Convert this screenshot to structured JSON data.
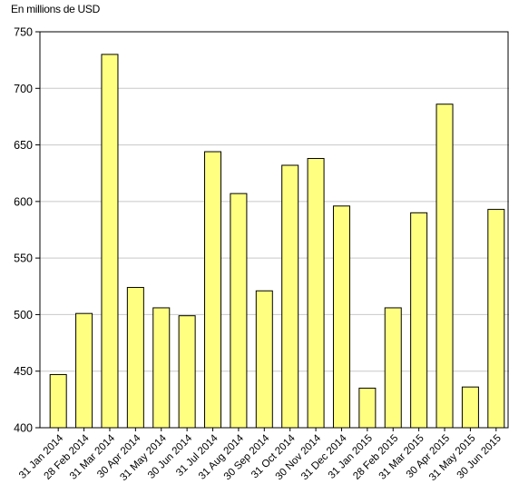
{
  "chart_data": {
    "type": "bar",
    "title": "",
    "ylabel": "En millions de USD",
    "xlabel": "",
    "ylim": [
      400,
      750
    ],
    "yticks": [
      400,
      450,
      500,
      550,
      600,
      650,
      700,
      750
    ],
    "grid": true,
    "bar_color": "#FFFF80",
    "categories": [
      "31 Jan 2014",
      "28 Feb 2014",
      "31 Mar 2014",
      "30 Apr 2014",
      "31 May 2014",
      "30 Jun 2014",
      "31 Jul 2014",
      "31 Aug 2014",
      "30 Sep 2014",
      "31 Oct 2014",
      "30 Nov 2014",
      "31 Dec 2014",
      "31 Jan 2015",
      "28 Feb 2015",
      "31 Mar 2015",
      "30 Apr 2015",
      "31 May 2015",
      "30 Jun 2015"
    ],
    "values": [
      447,
      501,
      730,
      524,
      506,
      499,
      644,
      607,
      521,
      632,
      638,
      596,
      435,
      506,
      590,
      686,
      436,
      593
    ]
  }
}
